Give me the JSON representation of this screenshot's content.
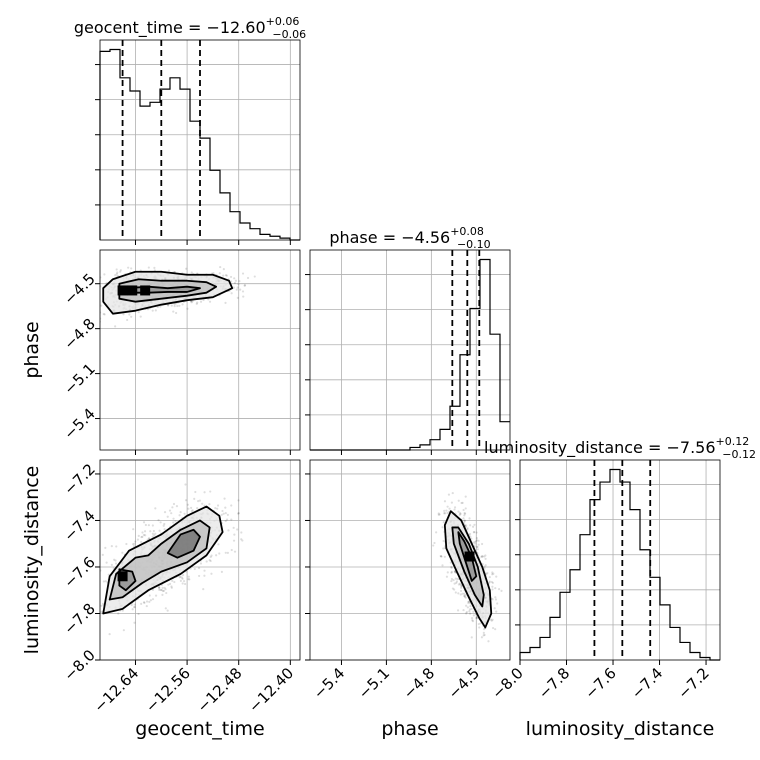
{
  "chart_data": {
    "type": "corner",
    "params": [
      "geocent_time",
      "phase",
      "luminosity_distance"
    ],
    "titles": [
      {
        "param": "geocent_time",
        "prefix": "geocent_time = ",
        "value": "−12.60",
        "upper": "+0.06",
        "lower": "−0.06"
      },
      {
        "param": "phase",
        "prefix": "phase = ",
        "value": "−4.56",
        "upper": "+0.08",
        "lower": "−0.10"
      },
      {
        "param": "luminosity_distance",
        "prefix": "luminosity_distance = ",
        "value": "−7.56",
        "upper": "+0.12",
        "lower": "−0.12"
      }
    ],
    "axis_labels": {
      "x": [
        "geocent_time",
        "phase",
        "luminosity_distance"
      ],
      "y": [
        "phase",
        "luminosity_distance"
      ]
    },
    "ranges": {
      "geocent_time": [
        -12.695,
        -12.385
      ],
      "phase": [
        -5.61,
        -4.275
      ],
      "luminosity_distance": [
        -8.0,
        -7.14
      ]
    },
    "ticks": {
      "geocent_time": [
        -12.64,
        -12.56,
        -12.48,
        -12.4
      ],
      "phase": [
        -5.4,
        -5.1,
        -4.8,
        -4.5
      ],
      "luminosity_distance": [
        -8.0,
        -7.8,
        -7.6,
        -7.4,
        -7.2
      ]
    },
    "tick_labels": {
      "geocent_time": [
        "−12.64",
        "−12.56",
        "−12.48",
        "−12.40"
      ],
      "phase": [
        "−5.4",
        "−5.1",
        "−4.8",
        "−4.5"
      ],
      "luminosity_distance": [
        "−8.0",
        "−7.8",
        "−7.6",
        "−7.4",
        "−7.2"
      ]
    },
    "quantiles": {
      "geocent_time": [
        -12.66,
        -12.6,
        -12.54
      ],
      "phase": [
        -4.66,
        -4.56,
        -4.48
      ],
      "luminosity_distance": [
        -7.68,
        -7.56,
        -7.44
      ]
    },
    "histograms": {
      "geocent_time": {
        "edges": [
          -12.695,
          -12.6795,
          -12.664,
          -12.6485,
          -12.633,
          -12.6175,
          -12.602,
          -12.5865,
          -12.571,
          -12.5555,
          -12.54,
          -12.5245,
          -12.509,
          -12.4935,
          -12.478,
          -12.4625,
          -12.447,
          -12.4315,
          -12.416,
          -12.4005,
          -12.385
        ],
        "counts": [
          100,
          101,
          86,
          79,
          71,
          73,
          80,
          86,
          80,
          63,
          54,
          37,
          25,
          15,
          9,
          6,
          3,
          2,
          1,
          0
        ]
      },
      "phase": {
        "edges": [
          -5.61,
          -5.5433,
          -5.4765,
          -5.4098,
          -5.343,
          -5.2763,
          -5.2095,
          -5.1428,
          -5.076,
          -5.0093,
          -4.9425,
          -4.8758,
          -4.809,
          -4.7423,
          -4.6755,
          -4.6088,
          -4.542,
          -4.4753,
          -4.4085,
          -4.3418,
          -4.275
        ],
        "counts": [
          0,
          0,
          0,
          0,
          0,
          0,
          0,
          0,
          0,
          0,
          1,
          2,
          4,
          8,
          17,
          37,
          55,
          74,
          45,
          11
        ]
      },
      "luminosity_distance": {
        "edges": [
          -8.0,
          -7.957,
          -7.914,
          -7.871,
          -7.828,
          -7.785,
          -7.742,
          -7.699,
          -7.656,
          -7.613,
          -7.57,
          -7.527,
          -7.484,
          -7.441,
          -7.398,
          -7.355,
          -7.312,
          -7.269,
          -7.226,
          -7.183,
          -7.14
        ],
        "counts": [
          3,
          5,
          9,
          17,
          27,
          36,
          50,
          64,
          71,
          76,
          71,
          60,
          44,
          33,
          22,
          13,
          7,
          3,
          1,
          0
        ]
      }
    },
    "contours_2d": {
      "phase_vs_geocent_time": [
        [
          [
            -12.675,
            -4.47
          ],
          [
            -12.64,
            -4.42
          ],
          [
            -12.6,
            -4.42
          ],
          [
            -12.56,
            -4.44
          ],
          [
            -12.52,
            -4.44
          ],
          [
            -12.495,
            -4.48
          ],
          [
            -12.49,
            -4.53
          ],
          [
            -12.52,
            -4.59
          ],
          [
            -12.56,
            -4.61
          ],
          [
            -12.6,
            -4.64
          ],
          [
            -12.64,
            -4.68
          ],
          [
            -12.675,
            -4.7
          ],
          [
            -12.69,
            -4.62
          ],
          [
            -12.69,
            -4.53
          ]
        ],
        [
          [
            -12.665,
            -4.5
          ],
          [
            -12.635,
            -4.47
          ],
          [
            -12.6,
            -4.48
          ],
          [
            -12.56,
            -4.48
          ],
          [
            -12.53,
            -4.49
          ],
          [
            -12.515,
            -4.52
          ],
          [
            -12.53,
            -4.56
          ],
          [
            -12.56,
            -4.58
          ],
          [
            -12.6,
            -4.6
          ],
          [
            -12.64,
            -4.62
          ],
          [
            -12.665,
            -4.6
          ]
        ],
        [
          [
            -12.655,
            -4.53
          ],
          [
            -12.62,
            -4.52
          ],
          [
            -12.59,
            -4.53
          ],
          [
            -12.56,
            -4.52
          ],
          [
            -12.54,
            -4.53
          ],
          [
            -12.56,
            -4.555
          ],
          [
            -12.59,
            -4.555
          ],
          [
            -12.62,
            -4.56
          ],
          [
            -12.655,
            -4.56
          ]
        ]
      ],
      "luminosity_distance_vs_geocent_time": [
        [
          [
            -12.69,
            -7.8
          ],
          [
            -12.68,
            -7.64
          ],
          [
            -12.65,
            -7.53
          ],
          [
            -12.6,
            -7.46
          ],
          [
            -12.56,
            -7.38
          ],
          [
            -12.53,
            -7.34
          ],
          [
            -12.51,
            -7.38
          ],
          [
            -12.505,
            -7.45
          ],
          [
            -12.53,
            -7.55
          ],
          [
            -12.57,
            -7.63
          ],
          [
            -12.62,
            -7.7
          ],
          [
            -12.66,
            -7.78
          ]
        ],
        [
          [
            -12.68,
            -7.74
          ],
          [
            -12.67,
            -7.63
          ],
          [
            -12.64,
            -7.56
          ],
          [
            -12.62,
            -7.55
          ],
          [
            -12.6,
            -7.5
          ],
          [
            -12.57,
            -7.44
          ],
          [
            -12.54,
            -7.4
          ],
          [
            -12.525,
            -7.43
          ],
          [
            -12.53,
            -7.52
          ],
          [
            -12.56,
            -7.58
          ],
          [
            -12.6,
            -7.62
          ],
          [
            -12.63,
            -7.67
          ],
          [
            -12.66,
            -7.73
          ]
        ],
        [
          [
            -12.665,
            -7.68
          ],
          [
            -12.665,
            -7.61
          ],
          [
            -12.645,
            -7.62
          ],
          [
            -12.64,
            -7.66
          ],
          [
            -12.655,
            -7.7
          ]
        ],
        [
          [
            -12.59,
            -7.54
          ],
          [
            -12.57,
            -7.46
          ],
          [
            -12.55,
            -7.44
          ],
          [
            -12.54,
            -7.47
          ],
          [
            -12.55,
            -7.53
          ],
          [
            -12.575,
            -7.56
          ]
        ]
      ],
      "luminosity_distance_vs_phase": [
        [
          [
            -4.71,
            -7.42
          ],
          [
            -4.67,
            -7.36
          ],
          [
            -4.6,
            -7.4
          ],
          [
            -4.53,
            -7.5
          ],
          [
            -4.46,
            -7.6
          ],
          [
            -4.41,
            -7.7
          ],
          [
            -4.4,
            -7.8
          ],
          [
            -4.44,
            -7.86
          ],
          [
            -4.48,
            -7.82
          ],
          [
            -4.55,
            -7.73
          ],
          [
            -4.63,
            -7.62
          ],
          [
            -4.7,
            -7.52
          ]
        ],
        [
          [
            -4.66,
            -7.43
          ],
          [
            -4.62,
            -7.43
          ],
          [
            -4.55,
            -7.5
          ],
          [
            -4.49,
            -7.6
          ],
          [
            -4.45,
            -7.72
          ],
          [
            -4.46,
            -7.77
          ],
          [
            -4.51,
            -7.72
          ],
          [
            -4.58,
            -7.62
          ],
          [
            -4.65,
            -7.5
          ]
        ],
        [
          [
            -4.62,
            -7.45
          ],
          [
            -4.58,
            -7.49
          ],
          [
            -4.53,
            -7.56
          ],
          [
            -4.5,
            -7.64
          ],
          [
            -4.53,
            -7.66
          ],
          [
            -4.57,
            -7.58
          ],
          [
            -4.61,
            -7.5
          ]
        ]
      ]
    },
    "peaks_2d": {
      "phase_vs_geocent_time": [
        [
          -12.66,
          -4.545
        ],
        [
          -12.645,
          -4.545
        ],
        [
          -12.625,
          -4.545
        ]
      ],
      "luminosity_distance_vs_geocent_time": [
        [
          -12.66,
          -7.64
        ]
      ],
      "luminosity_distance_vs_phase": [
        [
          -4.545,
          -7.555
        ]
      ]
    },
    "grid": true
  }
}
